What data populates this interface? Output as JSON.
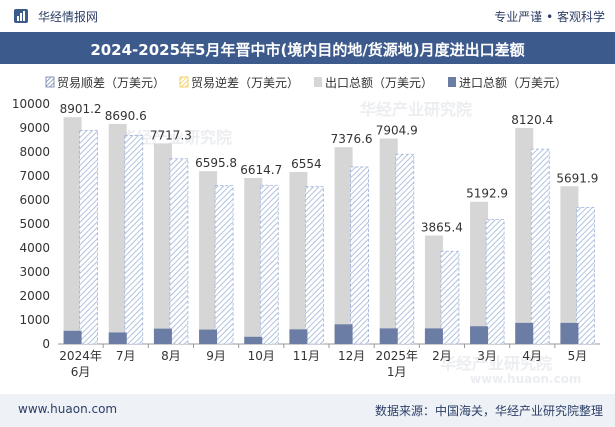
{
  "header": {
    "site_name": "华经情报网",
    "tags": "专业严谨 • 客观科学"
  },
  "footer": {
    "url": "www.huaon.com",
    "source": "数据来源：中国海关，华经产业研究院整理"
  },
  "watermarks": [
    "华经产业研究院",
    "www.huaon.com"
  ],
  "colors": {
    "title_bg": "#3d5a8c",
    "export_bar": "#d6d6d6",
    "import_bar": "#6b7da4",
    "surplus_hatch": "#9fb3d6",
    "deficit_color": "#f2c94c",
    "axis_text": "#333333"
  },
  "chart_data": {
    "type": "bar",
    "title": "2024-2025年5月年晋中市(境内目的地/货源地)月度进出口差额",
    "categories": [
      "2024年\n6月",
      "7月",
      "8月",
      "9月",
      "10月",
      "11月",
      "12月",
      "2025年\n1月",
      "2月",
      "3月",
      "4月",
      "5月"
    ],
    "legend": [
      "贸易顺差（万美元）",
      "贸易逆差（万美元）",
      "出口总额（万美元）",
      "进口总额（万美元）"
    ],
    "ylim": [
      0,
      10000
    ],
    "yticks": [
      0,
      1000,
      2000,
      3000,
      4000,
      5000,
      6000,
      7000,
      8000,
      9000,
      10000
    ],
    "series": [
      {
        "name": "贸易顺差（万美元）",
        "values": [
          8901.2,
          8690.6,
          7717.3,
          6595.8,
          6614.7,
          6554,
          7376.6,
          7904.9,
          3865.4,
          5192.9,
          8120.4,
          5691.9
        ]
      },
      {
        "name": "贸易逆差（万美元）",
        "values": [
          0,
          0,
          0,
          0,
          0,
          0,
          0,
          0,
          0,
          0,
          0,
          0
        ]
      },
      {
        "name": "出口总额（万美元）",
        "values": [
          9450,
          9170,
          8360,
          7200,
          6920,
          7170,
          8200,
          8560,
          4520,
          5930,
          9000,
          6570
        ]
      },
      {
        "name": "进口总额（万美元）",
        "values": [
          550,
          480,
          640,
          600,
          300,
          610,
          820,
          650,
          650,
          740,
          880,
          880
        ]
      }
    ],
    "data_labels": [
      "8901.2",
      "8690.6",
      "7717.3",
      "6595.8",
      "6614.7",
      "6554",
      "7376.6",
      "7904.9",
      "3865.4",
      "5192.9",
      "8120.4",
      "5691.9"
    ]
  }
}
